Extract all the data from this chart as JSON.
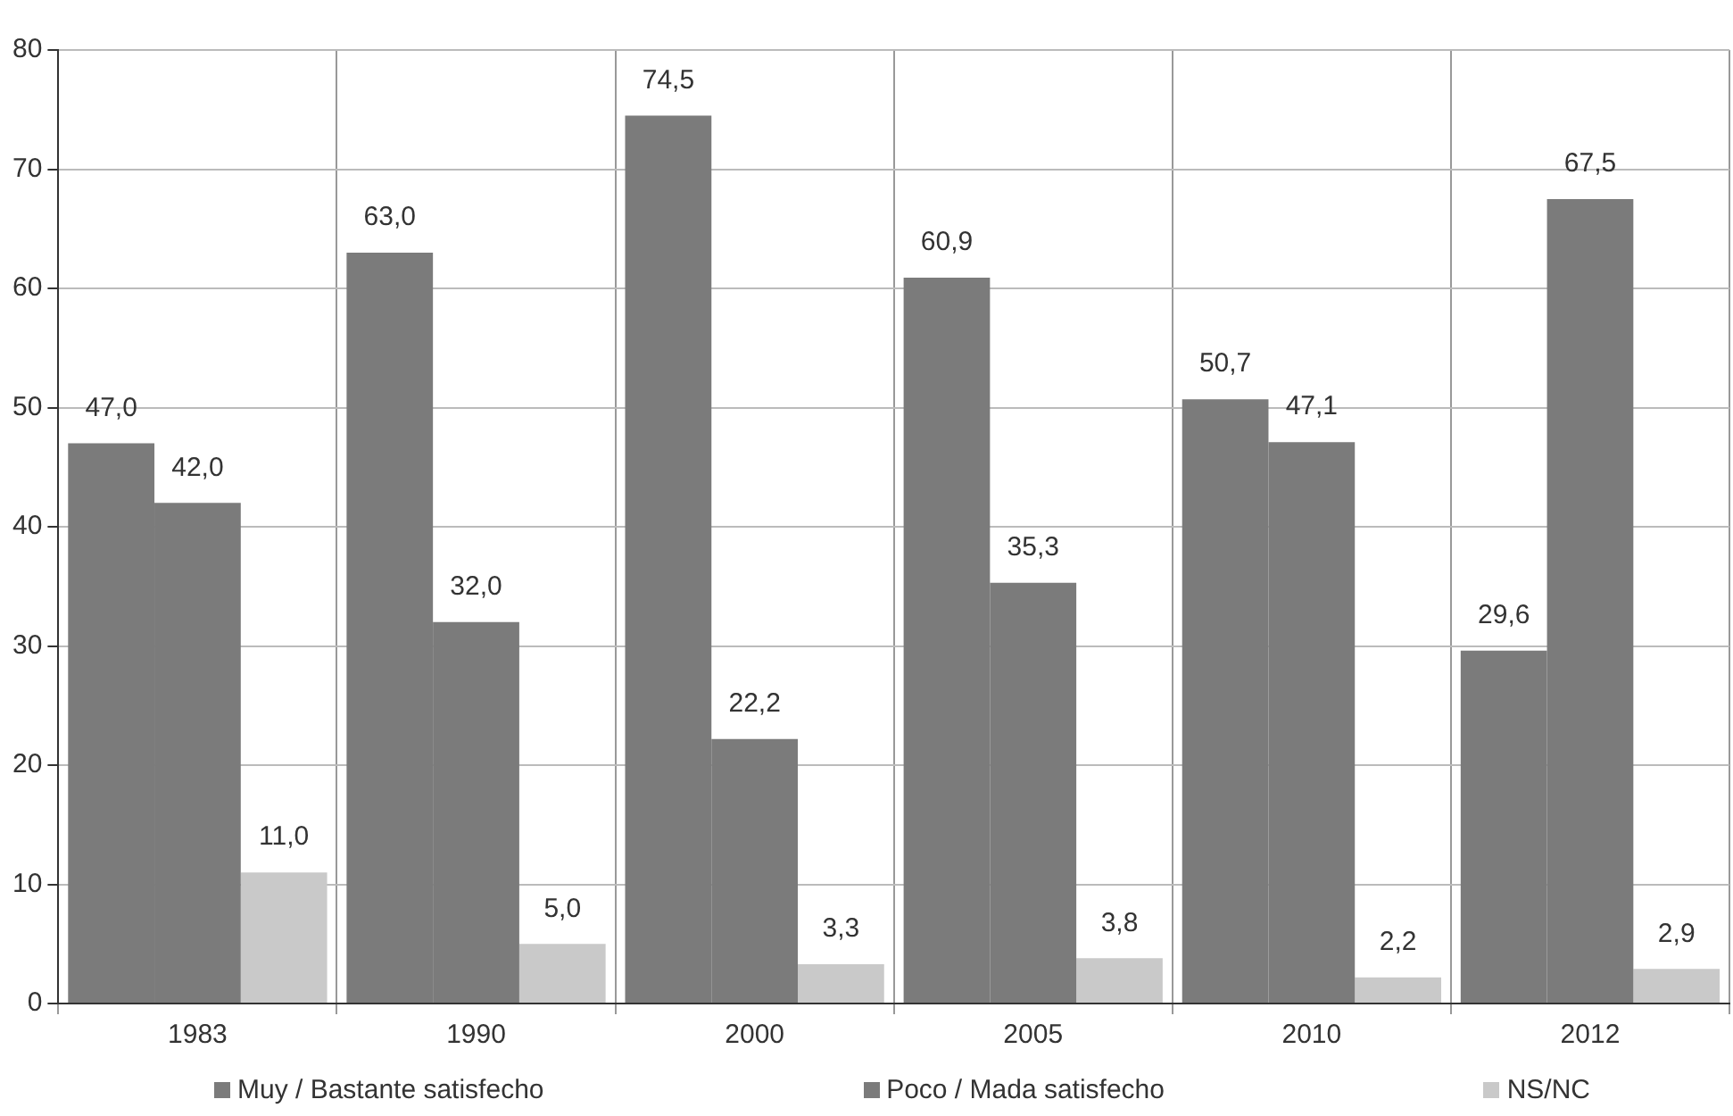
{
  "chart_data": {
    "type": "bar",
    "categories": [
      "1983",
      "1990",
      "2000",
      "2005",
      "2010",
      "2012"
    ],
    "series": [
      {
        "name": "Muy / Bastante satisfecho",
        "color": "#7b7b7b",
        "values": [
          47.0,
          63.0,
          74.5,
          60.9,
          50.7,
          29.6
        ],
        "value_labels": [
          "47,0",
          "63,0",
          "74,5",
          "60,9",
          "50,7",
          "29,6"
        ]
      },
      {
        "name": "Poco / Mada satisfecho",
        "color": "#7b7b7b",
        "values": [
          42.0,
          32.0,
          22.2,
          35.3,
          47.1,
          67.5
        ],
        "value_labels": [
          "42,0",
          "32,0",
          "22,2",
          "35,3",
          "47,1",
          "67,5"
        ]
      },
      {
        "name": "NS/NC",
        "color": "#c9c9c9",
        "values": [
          11.0,
          5.0,
          3.3,
          3.8,
          2.2,
          2.9
        ],
        "value_labels": [
          "11,0",
          "5,0",
          "3,3",
          "3,8",
          "2,2",
          "2,9"
        ]
      }
    ],
    "ylim": [
      0,
      80
    ],
    "yticks": [
      0,
      10,
      20,
      30,
      40,
      50,
      60,
      70,
      80
    ],
    "grid": true,
    "legend": "bottom"
  }
}
